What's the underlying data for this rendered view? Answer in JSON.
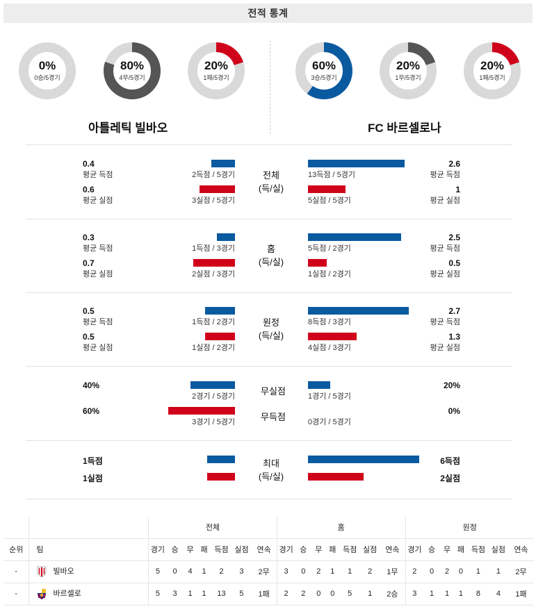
{
  "header": {
    "title": "전적 통계"
  },
  "donuts": {
    "left": [
      {
        "pct": "0%",
        "sub": "0승/5경기",
        "fraction": 0,
        "color": "#555555"
      },
      {
        "pct": "80%",
        "sub": "4무/5경기",
        "fraction": 0.8,
        "color": "#555555"
      },
      {
        "pct": "20%",
        "sub": "1패/5경기",
        "fraction": 0.2,
        "color": "#d0021b"
      }
    ],
    "right": [
      {
        "pct": "60%",
        "sub": "3승/5경기",
        "fraction": 0.6,
        "color": "#0a5aa0"
      },
      {
        "pct": "20%",
        "sub": "1무/5경기",
        "fraction": 0.2,
        "color": "#555555"
      },
      {
        "pct": "20%",
        "sub": "1패/5경기",
        "fraction": 0.2,
        "color": "#d0021b"
      }
    ],
    "track_color": "#d9d9d9"
  },
  "teams": {
    "home": "아틀레틱 빌바오",
    "away": "FC 바르셀로나"
  },
  "sections": [
    {
      "category": [
        "전체",
        "(득/실)"
      ],
      "home": [
        {
          "value": "0.4",
          "label": "평균 득점",
          "bar_text": "2득점 / 5경기",
          "bar_fraction": 0.0714
        },
        {
          "value": "0.6",
          "label": "평균 실점",
          "bar_text": "3실점 / 5경기",
          "bar_fraction": 0.1071
        }
      ],
      "away": [
        {
          "value": "2.6",
          "label": "평균 득점",
          "bar_text": "13득점 / 5경기",
          "bar_fraction": 0.4643
        },
        {
          "value": "1",
          "label": "평균 실점",
          "bar_text": "5실점 / 5경기",
          "bar_fraction": 0.1786
        }
      ]
    },
    {
      "category": [
        "홈",
        "(득/실)"
      ],
      "home": [
        {
          "value": "0.3",
          "label": "평균 득점",
          "bar_text": "1득점 / 3경기",
          "bar_fraction": 0.0536
        },
        {
          "value": "0.7",
          "label": "평균 실점",
          "bar_text": "2실점 / 3경기",
          "bar_fraction": 0.125
        }
      ],
      "away": [
        {
          "value": "2.5",
          "label": "평균 득점",
          "bar_text": "5득점 / 2경기",
          "bar_fraction": 0.4464
        },
        {
          "value": "0.5",
          "label": "평균 실점",
          "bar_text": "1실점 / 2경기",
          "bar_fraction": 0.0893
        }
      ]
    },
    {
      "category": [
        "원정",
        "(득/실)"
      ],
      "home": [
        {
          "value": "0.5",
          "label": "평균 득점",
          "bar_text": "1득점 / 2경기",
          "bar_fraction": 0.0893
        },
        {
          "value": "0.5",
          "label": "평균 실점",
          "bar_text": "1실점 / 2경기",
          "bar_fraction": 0.0893
        }
      ],
      "away": [
        {
          "value": "2.7",
          "label": "평균 득점",
          "bar_text": "8득점 / 3경기",
          "bar_fraction": 0.4821
        },
        {
          "value": "1.3",
          "label": "평균 실점",
          "bar_text": "4실점 / 3경기",
          "bar_fraction": 0.2321
        }
      ]
    }
  ],
  "clean": {
    "rows": [
      {
        "category": "무실점",
        "home_value": "40%",
        "home_bar_text": "2경기 / 5경기",
        "home_fraction": 0.4,
        "away_value": "20%",
        "away_bar_text": "1경기 / 5경기",
        "away_fraction": 0.2
      },
      {
        "category": "무득점",
        "home_value": "60%",
        "home_bar_text": "3경기 / 5경기",
        "home_fraction": 0.6,
        "away_value": "0%",
        "away_bar_text": "0경기 / 5경기",
        "away_fraction": 0
      }
    ]
  },
  "max": {
    "category": [
      "최대",
      "(득/실)"
    ],
    "home": [
      {
        "value": "1득점",
        "fraction": 0.25
      },
      {
        "value": "1실점",
        "fraction": 0.25
      }
    ],
    "away": [
      {
        "value": "6득점",
        "fraction": 1.0
      },
      {
        "value": "2실점",
        "fraction": 0.5
      }
    ]
  },
  "standings": {
    "groups": [
      "전체",
      "홈",
      "원정"
    ],
    "rank_header": "순위",
    "team_header": "팀",
    "cols": [
      "경기",
      "승",
      "무",
      "패",
      "득점",
      "실점",
      "연속"
    ],
    "rows": [
      {
        "rank": "-",
        "team": "빌바오",
        "crest": "bilbao-crest-icon",
        "total": [
          "5",
          "0",
          "4",
          "1",
          "2",
          "3",
          "2무"
        ],
        "home": [
          "3",
          "0",
          "2",
          "1",
          "1",
          "2",
          "1무"
        ],
        "away": [
          "2",
          "0",
          "2",
          "0",
          "1",
          "1",
          "2무"
        ]
      },
      {
        "rank": "-",
        "team": "바르셀로",
        "crest": "barcelona-crest-icon",
        "total": [
          "5",
          "3",
          "1",
          "1",
          "13",
          "5",
          "1패"
        ],
        "home": [
          "2",
          "2",
          "0",
          "0",
          "5",
          "1",
          "2승"
        ],
        "away": [
          "3",
          "1",
          "1",
          "1",
          "8",
          "4",
          "1패"
        ]
      }
    ]
  },
  "colors": {
    "blue": "#0a5aa0",
    "red": "#d0021b",
    "gray": "#555555"
  }
}
